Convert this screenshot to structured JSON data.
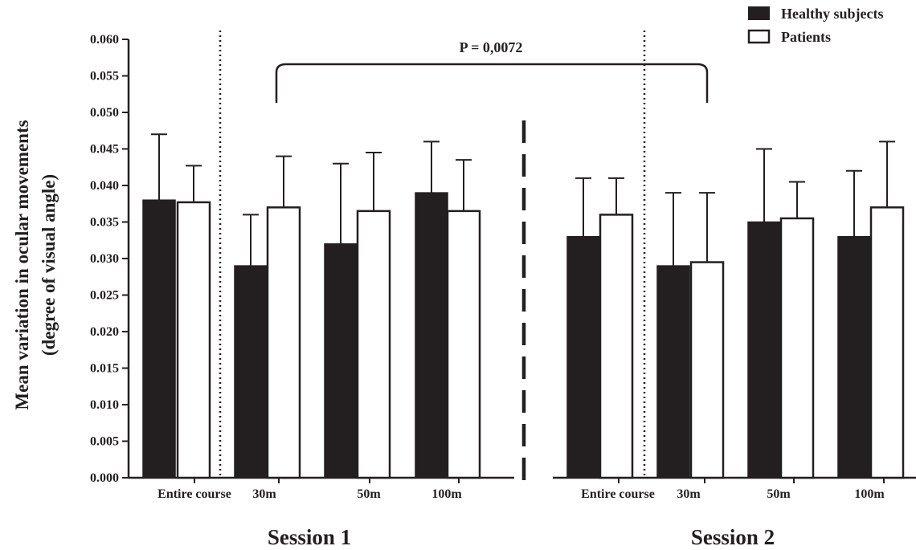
{
  "chart_data": {
    "type": "bar",
    "ylabel_line1": "Mean variation in ocular movements",
    "ylabel_line2": "(degree of visual angle)",
    "ylim": [
      0,
      0.06
    ],
    "yticks": [
      "0.000",
      "0.005",
      "0.010",
      "0.015",
      "0.020",
      "0.025",
      "0.030",
      "0.035",
      "0.040",
      "0.045",
      "0.050",
      "0.055",
      "0.060"
    ],
    "legend": {
      "position": "top-right",
      "entries": [
        {
          "name": "Healthy subjects",
          "color": "#231f20",
          "fill": "solid"
        },
        {
          "name": "Patients",
          "color": "#ffffff",
          "fill": "outline"
        }
      ]
    },
    "significance": {
      "label": "P = 0,0072",
      "from": "Session 1 / 30m",
      "to": "Session 2 / 30m"
    },
    "panels": [
      {
        "session": "Session 1",
        "categories": [
          "Entire course",
          "30m",
          "50m",
          "100m"
        ],
        "series": [
          {
            "name": "Healthy subjects",
            "values": [
              0.038,
              0.029,
              0.032,
              0.039
            ],
            "errors": [
              0.009,
              0.007,
              0.011,
              0.007
            ]
          },
          {
            "name": "Patients",
            "values": [
              0.0377,
              0.037,
              0.0365,
              0.0365
            ],
            "errors": [
              0.005,
              0.007,
              0.008,
              0.007
            ]
          }
        ]
      },
      {
        "session": "Session 2",
        "categories": [
          "Entire course",
          "30m",
          "50m",
          "100m"
        ],
        "series": [
          {
            "name": "Healthy subjects",
            "values": [
              0.033,
              0.029,
              0.035,
              0.033
            ],
            "errors": [
              0.008,
              0.01,
              0.01,
              0.009
            ]
          },
          {
            "name": "Patients",
            "values": [
              0.036,
              0.0295,
              0.0355,
              0.037
            ],
            "errors": [
              0.005,
              0.0095,
              0.005,
              0.009
            ]
          }
        ]
      }
    ]
  }
}
